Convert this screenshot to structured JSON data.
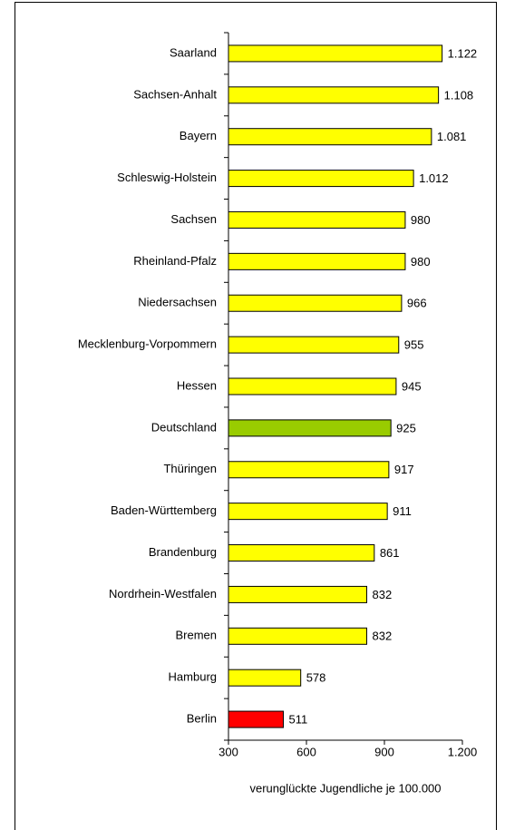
{
  "chart_data": {
    "type": "hbar",
    "categories": [
      "Saarland",
      "Sachsen-Anhalt",
      "Bayern",
      "Schleswig-Holstein",
      "Sachsen",
      "Rheinland-Pfalz",
      "Niedersachsen",
      "Mecklenburg-Vorpommern",
      "Hessen",
      "Deutschland",
      "Thüringen",
      "Baden-Württemberg",
      "Brandenburg",
      "Nordrhein-Westfalen",
      "Bremen",
      "Hamburg",
      "Berlin"
    ],
    "values": [
      1122,
      1108,
      1081,
      1012,
      980,
      980,
      966,
      955,
      945,
      925,
      917,
      911,
      861,
      832,
      832,
      578,
      511
    ],
    "value_labels": [
      "1.122",
      "1.108",
      "1.081",
      "1.012",
      "980",
      "980",
      "966",
      "955",
      "945",
      "925",
      "917",
      "911",
      "861",
      "832",
      "832",
      "578",
      "511"
    ],
    "colors": [
      "#ffff00",
      "#ffff00",
      "#ffff00",
      "#ffff00",
      "#ffff00",
      "#ffff00",
      "#ffff00",
      "#ffff00",
      "#ffff00",
      "#99cc00",
      "#ffff00",
      "#ffff00",
      "#ffff00",
      "#ffff00",
      "#ffff00",
      "#ffff00",
      "#ff0000"
    ],
    "xlabel": "verunglückte Jugendliche  je 100.000",
    "xlim": [
      300,
      1200
    ],
    "xticks": [
      300,
      600,
      900,
      {
        "value": 1200,
        "label": "1.200"
      }
    ]
  }
}
